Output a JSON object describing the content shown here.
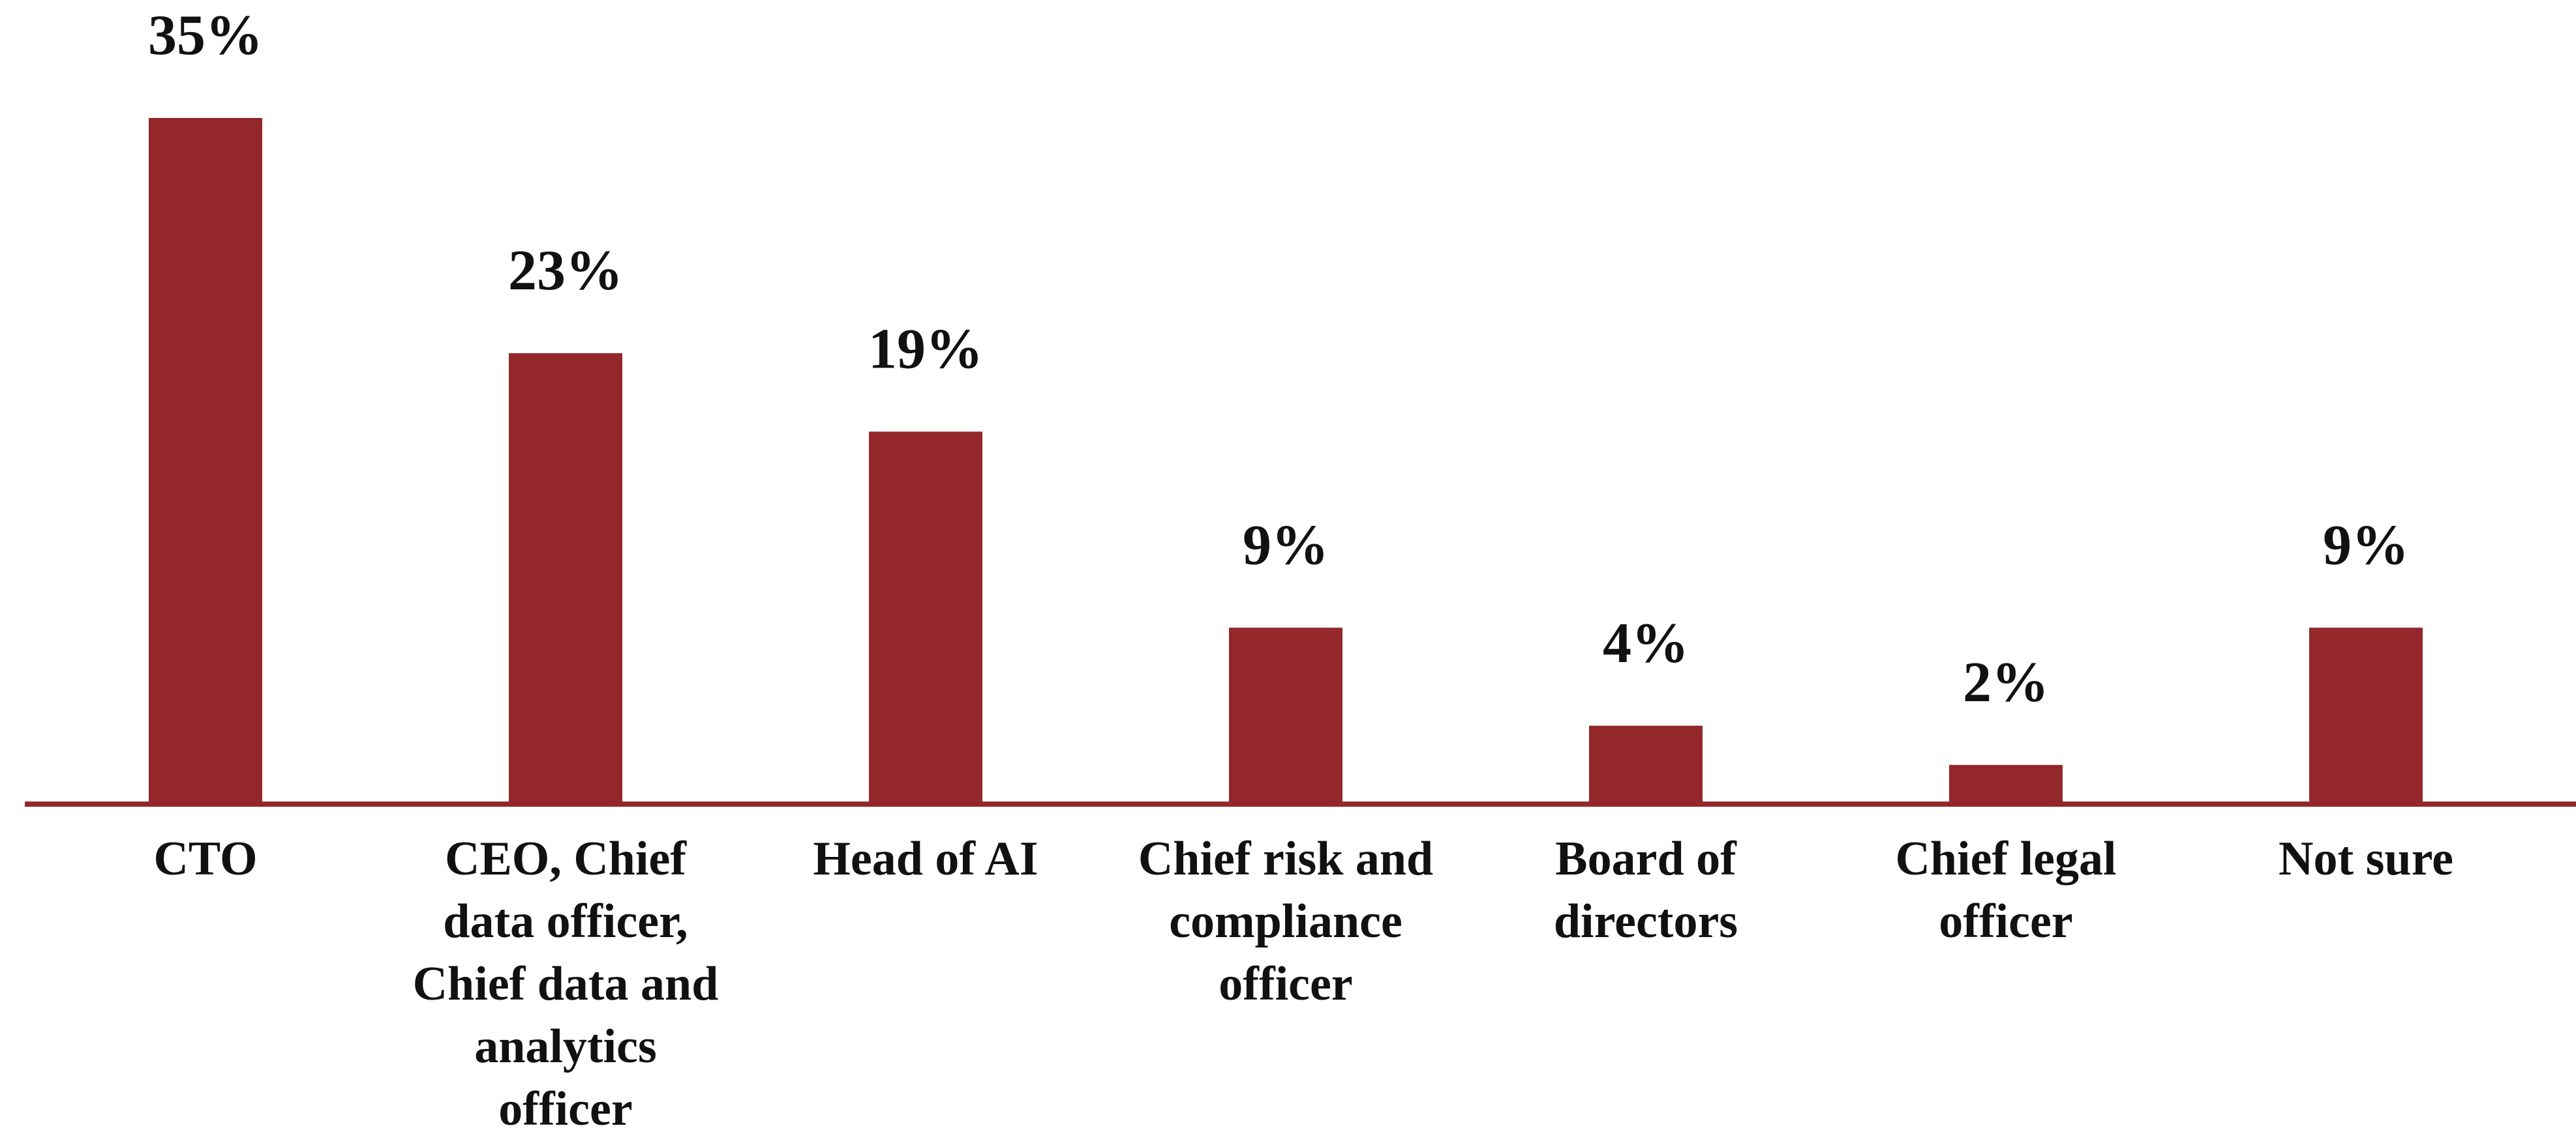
{
  "chart_data": {
    "type": "bar",
    "categories": [
      "CTO",
      "CEO, Chief data officer, Chief data and analytics officer",
      "Head of AI",
      "Chief risk and compliance officer",
      "Board of directors",
      "Chief legal officer",
      "Not sure"
    ],
    "values": [
      35,
      23,
      19,
      9,
      4,
      2,
      9
    ],
    "value_labels": [
      "35%",
      "23%",
      "19%",
      "9%",
      "4%",
      "2%",
      "9%"
    ],
    "color": "#93272a"
  }
}
